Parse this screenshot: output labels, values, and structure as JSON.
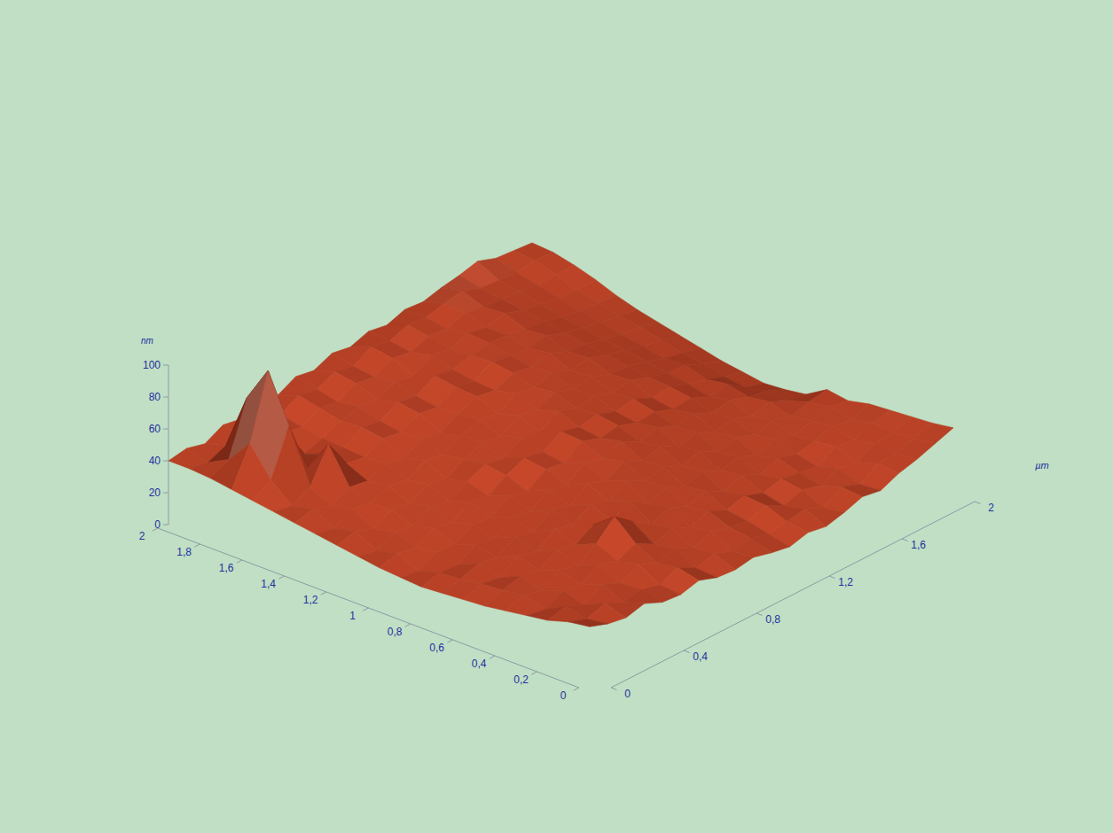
{
  "chart_data": {
    "type": "surface",
    "x_label": "µm",
    "z_label": "nm",
    "xlim": [
      0,
      2
    ],
    "ylim": [
      0,
      2
    ],
    "zlim": [
      0,
      100
    ],
    "xticks": [
      0,
      {
        "value": 0.4,
        "label": "0,4"
      },
      {
        "value": 0.8,
        "label": "0,8"
      },
      {
        "value": 1.2,
        "label": "1,2"
      },
      {
        "value": 1.6,
        "label": "1,6"
      },
      2
    ],
    "yticks": [
      0,
      {
        "value": 0.2,
        "label": "0,2"
      },
      {
        "value": 0.4,
        "label": "0,4"
      },
      {
        "value": 0.6,
        "label": "0,6"
      },
      {
        "value": 0.8,
        "label": "0,8"
      },
      1,
      {
        "value": 1.2,
        "label": "1,2"
      },
      {
        "value": 1.4,
        "label": "1,4"
      },
      {
        "value": 1.6,
        "label": "1,6"
      },
      {
        "value": 1.8,
        "label": "1,8"
      },
      2
    ],
    "zticks": [
      0,
      20,
      40,
      60,
      80,
      100
    ],
    "x": [
      0,
      0.1,
      0.2,
      0.3,
      0.4,
      0.5,
      0.6,
      0.7,
      0.8,
      0.9,
      1,
      1.1,
      1.2,
      1.3,
      1.4,
      1.5,
      1.6,
      1.7,
      1.8,
      1.9,
      2
    ],
    "y": [
      0,
      0.1,
      0.2,
      0.3,
      0.4,
      0.5,
      0.6,
      0.7,
      0.8,
      0.9,
      1,
      1.1,
      1.2,
      1.3,
      1.4,
      1.5,
      1.6,
      1.7,
      1.8,
      1.9,
      2
    ],
    "z": [
      [
        36,
        32,
        30,
        33,
        28,
        27,
        30,
        26,
        25,
        27,
        24,
        22,
        25,
        23,
        26,
        30,
        28,
        33,
        36,
        40,
        44
      ],
      [
        34,
        30,
        34,
        29,
        31,
        28,
        33,
        27,
        30,
        26,
        28,
        25,
        27,
        29,
        24,
        31,
        27,
        34,
        35,
        38,
        42
      ],
      [
        30,
        33,
        28,
        35,
        30,
        36,
        31,
        34,
        29,
        33,
        30,
        28,
        32,
        26,
        30,
        27,
        32,
        30,
        36,
        37,
        41
      ],
      [
        28,
        26,
        32,
        30,
        37,
        33,
        38,
        32,
        36,
        31,
        35,
        30,
        33,
        29,
        32,
        30,
        28,
        35,
        33,
        38,
        40
      ],
      [
        26,
        30,
        27,
        34,
        31,
        39,
        50,
        41,
        34,
        38,
        33,
        37,
        31,
        35,
        30,
        34,
        31,
        33,
        37,
        35,
        39
      ],
      [
        24,
        28,
        31,
        29,
        36,
        33,
        40,
        37,
        43,
        36,
        40,
        35,
        38,
        33,
        36,
        31,
        35,
        32,
        35,
        38,
        36
      ],
      [
        23,
        27,
        25,
        33,
        30,
        38,
        35,
        42,
        38,
        45,
        39,
        42,
        37,
        40,
        34,
        37,
        33,
        36,
        33,
        36,
        38
      ],
      [
        22,
        25,
        29,
        27,
        34,
        31,
        39,
        36,
        44,
        40,
        46,
        41,
        44,
        38,
        41,
        36,
        38,
        34,
        37,
        32,
        30
      ],
      [
        21,
        24,
        23,
        30,
        28,
        36,
        33,
        41,
        38,
        46,
        43,
        48,
        42,
        45,
        40,
        42,
        37,
        39,
        35,
        33,
        28
      ],
      [
        22,
        20,
        26,
        25,
        32,
        30,
        38,
        35,
        43,
        41,
        49,
        45,
        47,
        43,
        44,
        40,
        41,
        36,
        38,
        30,
        27
      ],
      [
        23,
        26,
        24,
        30,
        28,
        35,
        33,
        40,
        45,
        43,
        50,
        47,
        49,
        45,
        47,
        42,
        43,
        39,
        36,
        32,
        29
      ],
      [
        25,
        23,
        28,
        27,
        33,
        31,
        37,
        42,
        40,
        47,
        45,
        52,
        48,
        50,
        46,
        48,
        44,
        41,
        40,
        35,
        31
      ],
      [
        27,
        30,
        26,
        32,
        30,
        36,
        34,
        40,
        45,
        43,
        50,
        48,
        53,
        49,
        51,
        47,
        46,
        43,
        39,
        37,
        34
      ],
      [
        29,
        27,
        33,
        31,
        36,
        34,
        40,
        38,
        44,
        48,
        46,
        53,
        51,
        54,
        50,
        52,
        48,
        45,
        42,
        40,
        37
      ],
      [
        31,
        34,
        30,
        36,
        34,
        39,
        37,
        43,
        41,
        47,
        52,
        50,
        55,
        53,
        56,
        51,
        50,
        47,
        44,
        43,
        40
      ],
      [
        33,
        31,
        37,
        58,
        40,
        38,
        44,
        42,
        48,
        46,
        53,
        51,
        57,
        55,
        54,
        56,
        52,
        49,
        47,
        45,
        43
      ],
      [
        35,
        42,
        70,
        38,
        41,
        39,
        46,
        44,
        50,
        48,
        55,
        53,
        56,
        58,
        57,
        55,
        54,
        51,
        49,
        48,
        47
      ],
      [
        37,
        60,
        100,
        55,
        36,
        40,
        45,
        48,
        47,
        52,
        50,
        57,
        55,
        59,
        57,
        60,
        56,
        54,
        52,
        51,
        52
      ],
      [
        39,
        45,
        78,
        42,
        44,
        42,
        48,
        46,
        52,
        50,
        56,
        54,
        58,
        57,
        61,
        59,
        58,
        57,
        55,
        56,
        56
      ],
      [
        40,
        38,
        43,
        41,
        47,
        45,
        51,
        49,
        54,
        52,
        58,
        56,
        60,
        59,
        62,
        64,
        60,
        59,
        58,
        60,
        59
      ],
      [
        40,
        42,
        39,
        45,
        43,
        48,
        46,
        52,
        50,
        55,
        53,
        57,
        55,
        59,
        58,
        61,
        63,
        66,
        62,
        61,
        60
      ]
    ]
  }
}
